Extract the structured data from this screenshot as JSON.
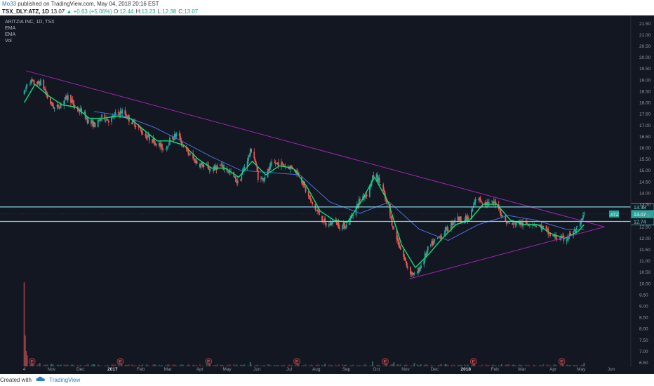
{
  "header": {
    "author": "Mo33",
    "published": "published on TradingView.com, May 04, 2018 20:16 EST"
  },
  "symbol_bar": {
    "symbol": "TSX_DLY:ATZ, 1D",
    "last": "13.07",
    "change": "▲ +0.63 (+5.06%)",
    "o_label": "O:",
    "o": "12.44",
    "h_label": "H:",
    "h": "13.23",
    "l_label": "L:",
    "l": "12.38",
    "c_label": "C:",
    "c": "13.07"
  },
  "legend": {
    "title": "ARITZIA INC, 1D, TSX",
    "ema1": "EMA",
    "ema2": "EMA",
    "vol": "Vol"
  },
  "footer": {
    "created_with": "Created with",
    "brand": "TradingView"
  },
  "colors": {
    "background": "#131722",
    "price_up": "#26a69a",
    "price_down": "#ef5350",
    "ema_fast": "#00e676",
    "ema_slow": "#4a6fd6",
    "trendline": "#9c27b0",
    "level_line": "#7fd3e0",
    "last_price_tag": "#26a69a"
  },
  "chart_data": {
    "type": "candlestick",
    "title": "ARITZIA INC, 1D, TSX",
    "xlabel": "",
    "ylabel": "",
    "ylim": [
      6.3,
      21.85
    ],
    "grid": false,
    "y_ticks": [
      "6.50",
      "7.00",
      "7.50",
      "8.00",
      "8.50",
      "9.00",
      "9.50",
      "10.00",
      "10.50",
      "11.00",
      "11.50",
      "12.00",
      "12.50",
      "13.00",
      "13.50",
      "14.00",
      "14.50",
      "15.00",
      "15.50",
      "16.00",
      "16.50",
      "17.00",
      "17.50",
      "18.00",
      "18.50",
      "19.00",
      "19.50",
      "20.00",
      "20.50",
      "21.00",
      "21.50"
    ],
    "x_ticks": [
      {
        "label": "4",
        "date": "2016-10-04"
      },
      {
        "label": "Nov",
        "date": "2016-11-01"
      },
      {
        "label": "Dec",
        "date": "2016-12-01"
      },
      {
        "label": "2017",
        "date": "2017-01-03"
      },
      {
        "label": "Feb",
        "date": "2017-02-01"
      },
      {
        "label": "Mar",
        "date": "2017-03-01"
      },
      {
        "label": "Apr",
        "date": "2017-04-03"
      },
      {
        "label": "May",
        "date": "2017-05-01"
      },
      {
        "label": "Jun",
        "date": "2017-06-01"
      },
      {
        "label": "Jul",
        "date": "2017-07-04"
      },
      {
        "label": "Aug",
        "date": "2017-08-01"
      },
      {
        "label": "Sep",
        "date": "2017-09-01"
      },
      {
        "label": "Oct",
        "date": "2017-10-02"
      },
      {
        "label": "Nov",
        "date": "2017-11-01"
      },
      {
        "label": "Dec",
        "date": "2017-12-01"
      },
      {
        "label": "2018",
        "date": "2018-01-02"
      },
      {
        "label": "Feb",
        "date": "2018-02-01"
      },
      {
        "label": "Mar",
        "date": "2018-03-01"
      },
      {
        "label": "Apr",
        "date": "2018-04-02"
      },
      {
        "label": "May",
        "date": "2018-05-01"
      },
      {
        "label": "Jun",
        "date": "2018-06-01"
      }
    ],
    "price_path": [
      [
        "2016-10-04",
        18.4
      ],
      [
        "2016-10-08",
        19.0
      ],
      [
        "2016-10-15",
        18.8
      ],
      [
        "2016-10-22",
        18.9
      ],
      [
        "2016-10-29",
        18.1
      ],
      [
        "2016-11-05",
        17.7
      ],
      [
        "2016-11-12",
        18.0
      ],
      [
        "2016-11-19",
        18.3
      ],
      [
        "2016-11-26",
        17.7
      ],
      [
        "2016-12-03",
        17.6
      ],
      [
        "2016-12-10",
        17.1
      ],
      [
        "2016-12-17",
        17.0
      ],
      [
        "2016-12-24",
        17.4
      ],
      [
        "2016-12-31",
        17.2
      ],
      [
        "2017-01-07",
        17.5
      ],
      [
        "2017-01-14",
        17.6
      ],
      [
        "2017-01-21",
        17.2
      ],
      [
        "2017-01-28",
        17.0
      ],
      [
        "2017-02-04",
        16.6
      ],
      [
        "2017-02-11",
        16.4
      ],
      [
        "2017-02-18",
        16.2
      ],
      [
        "2017-02-25",
        15.9
      ],
      [
        "2017-03-04",
        16.4
      ],
      [
        "2017-03-11",
        16.6
      ],
      [
        "2017-03-18",
        16.0
      ],
      [
        "2017-03-25",
        15.6
      ],
      [
        "2017-04-01",
        15.3
      ],
      [
        "2017-04-08",
        15.2
      ],
      [
        "2017-04-15",
        15.0
      ],
      [
        "2017-04-22",
        15.2
      ],
      [
        "2017-04-29",
        15.1
      ],
      [
        "2017-05-06",
        14.8
      ],
      [
        "2017-05-13",
        14.4
      ],
      [
        "2017-05-20",
        15.3
      ],
      [
        "2017-05-27",
        16.0
      ],
      [
        "2017-06-03",
        14.5
      ],
      [
        "2017-06-10",
        14.8
      ],
      [
        "2017-06-17",
        15.3
      ],
      [
        "2017-06-24",
        15.3
      ],
      [
        "2017-07-01",
        15.2
      ],
      [
        "2017-07-08",
        15.1
      ],
      [
        "2017-07-15",
        14.8
      ],
      [
        "2017-07-22",
        14.0
      ],
      [
        "2017-07-29",
        13.4
      ],
      [
        "2017-08-05",
        13.0
      ],
      [
        "2017-08-12",
        12.5
      ],
      [
        "2017-08-19",
        12.8
      ],
      [
        "2017-08-26",
        12.5
      ],
      [
        "2017-09-02",
        12.6
      ],
      [
        "2017-09-09",
        13.2
      ],
      [
        "2017-09-16",
        13.8
      ],
      [
        "2017-09-23",
        14.0
      ],
      [
        "2017-09-30",
        14.9
      ],
      [
        "2017-10-07",
        14.3
      ],
      [
        "2017-10-14",
        13.3
      ],
      [
        "2017-10-21",
        12.2
      ],
      [
        "2017-10-28",
        11.4
      ],
      [
        "2017-11-04",
        10.6
      ],
      [
        "2017-11-11",
        10.3
      ],
      [
        "2017-11-18",
        10.9
      ],
      [
        "2017-11-25",
        11.6
      ],
      [
        "2017-12-02",
        11.9
      ],
      [
        "2017-12-09",
        12.2
      ],
      [
        "2017-12-16",
        12.5
      ],
      [
        "2017-12-23",
        12.9
      ],
      [
        "2017-12-30",
        12.8
      ],
      [
        "2018-01-06",
        12.9
      ],
      [
        "2018-01-13",
        13.8
      ],
      [
        "2018-01-20",
        13.6
      ],
      [
        "2018-01-27",
        13.5
      ],
      [
        "2018-02-03",
        13.6
      ],
      [
        "2018-02-10",
        12.8
      ],
      [
        "2018-02-17",
        12.6
      ],
      [
        "2018-02-24",
        12.7
      ],
      [
        "2018-03-03",
        12.6
      ],
      [
        "2018-03-10",
        12.7
      ],
      [
        "2018-03-17",
        12.6
      ],
      [
        "2018-03-24",
        12.4
      ],
      [
        "2018-03-31",
        12.1
      ],
      [
        "2018-04-07",
        12.0
      ],
      [
        "2018-04-14",
        11.95
      ],
      [
        "2018-04-21",
        12.2
      ],
      [
        "2018-04-28",
        12.4
      ],
      [
        "2018-05-04",
        13.07
      ]
    ],
    "ema_fast": [
      [
        "2016-10-04",
        18.0
      ],
      [
        "2016-10-15",
        18.8
      ],
      [
        "2016-10-29",
        18.3
      ],
      [
        "2016-11-12",
        17.9
      ],
      [
        "2016-11-26",
        17.8
      ],
      [
        "2016-12-10",
        17.3
      ],
      [
        "2016-12-24",
        17.3
      ],
      [
        "2017-01-07",
        17.4
      ],
      [
        "2017-01-21",
        17.3
      ],
      [
        "2017-02-04",
        16.8
      ],
      [
        "2017-02-18",
        16.3
      ],
      [
        "2017-03-04",
        16.3
      ],
      [
        "2017-03-18",
        16.1
      ],
      [
        "2017-04-01",
        15.5
      ],
      [
        "2017-04-15",
        15.1
      ],
      [
        "2017-04-29",
        15.1
      ],
      [
        "2017-05-13",
        14.7
      ],
      [
        "2017-05-27",
        15.4
      ],
      [
        "2017-06-10",
        14.8
      ],
      [
        "2017-06-24",
        15.2
      ],
      [
        "2017-07-08",
        15.1
      ],
      [
        "2017-07-22",
        14.3
      ],
      [
        "2017-08-05",
        13.2
      ],
      [
        "2017-08-19",
        12.8
      ],
      [
        "2017-09-02",
        12.7
      ],
      [
        "2017-09-16",
        13.6
      ],
      [
        "2017-09-30",
        14.7
      ],
      [
        "2017-10-14",
        13.6
      ],
      [
        "2017-10-28",
        11.7
      ],
      [
        "2017-11-11",
        10.7
      ],
      [
        "2017-11-25",
        11.3
      ],
      [
        "2017-12-09",
        12.0
      ],
      [
        "2017-12-23",
        12.6
      ],
      [
        "2018-01-06",
        12.8
      ],
      [
        "2018-01-20",
        13.5
      ],
      [
        "2018-02-03",
        13.5
      ],
      [
        "2018-02-17",
        12.8
      ],
      [
        "2018-03-03",
        12.6
      ],
      [
        "2018-03-17",
        12.6
      ],
      [
        "2018-03-31",
        12.2
      ],
      [
        "2018-04-14",
        12.0
      ],
      [
        "2018-04-28",
        12.3
      ],
      [
        "2018-05-04",
        12.6
      ]
    ],
    "ema_slow": [
      [
        "2016-12-15",
        17.6
      ],
      [
        "2017-01-15",
        17.4
      ],
      [
        "2017-02-15",
        16.9
      ],
      [
        "2017-03-15",
        16.3
      ],
      [
        "2017-04-15",
        15.6
      ],
      [
        "2017-05-15",
        15.0
      ],
      [
        "2017-06-15",
        14.9
      ],
      [
        "2017-07-15",
        14.8
      ],
      [
        "2017-08-15",
        13.6
      ],
      [
        "2017-09-15",
        13.1
      ],
      [
        "2017-10-15",
        13.6
      ],
      [
        "2017-11-15",
        12.4
      ],
      [
        "2017-12-15",
        11.9
      ],
      [
        "2018-01-15",
        12.6
      ],
      [
        "2018-02-15",
        13.0
      ],
      [
        "2018-03-15",
        12.8
      ],
      [
        "2018-04-15",
        12.4
      ],
      [
        "2018-05-04",
        12.4
      ]
    ],
    "trendlines": [
      {
        "from": [
          "2016-10-06",
          19.4
        ],
        "to": [
          "2018-05-25",
          12.5
        ]
      },
      {
        "from": [
          "2017-11-05",
          10.2
        ],
        "to": [
          "2018-05-25",
          12.5
        ]
      }
    ],
    "horizontal_levels": [
      {
        "value": 13.38,
        "label": "13.38"
      },
      {
        "value": 12.74,
        "label": "12.74"
      }
    ],
    "last_price": {
      "symbol": "ATZ",
      "value": 13.07,
      "label": "13.07"
    },
    "earnings_markers": [
      "2016-10-12",
      "2017-01-11",
      "2017-04-12",
      "2017-07-12",
      "2017-10-11",
      "2018-01-10",
      "2018-04-11"
    ],
    "earnings_label": "E",
    "volume": {
      "ylim": [
        0,
        4000000
      ],
      "bars": [
        [
          "2016-10-04",
          3800000
        ],
        [
          "2016-10-05",
          1400000
        ],
        [
          "2016-10-06",
          700000
        ],
        [
          "2016-10-07",
          500000
        ],
        [
          "2016-10-11",
          350000
        ],
        [
          "2016-10-13",
          250000
        ],
        [
          "2016-10-20",
          150000
        ],
        [
          "2016-11-01",
          120000
        ],
        [
          "2016-12-15",
          90000
        ],
        [
          "2017-01-12",
          160000
        ],
        [
          "2017-02-15",
          90000
        ],
        [
          "2017-04-13",
          140000
        ],
        [
          "2017-05-25",
          200000
        ],
        [
          "2017-07-13",
          150000
        ],
        [
          "2017-08-10",
          120000
        ],
        [
          "2017-09-28",
          220000
        ],
        [
          "2017-10-12",
          260000
        ],
        [
          "2017-10-20",
          180000
        ],
        [
          "2017-11-10",
          150000
        ],
        [
          "2017-12-12",
          110000
        ],
        [
          "2018-01-11",
          170000
        ],
        [
          "2018-02-08",
          100000
        ],
        [
          "2018-04-12",
          150000
        ],
        [
          "2018-05-04",
          160000
        ]
      ],
      "baseline": 60000
    }
  }
}
